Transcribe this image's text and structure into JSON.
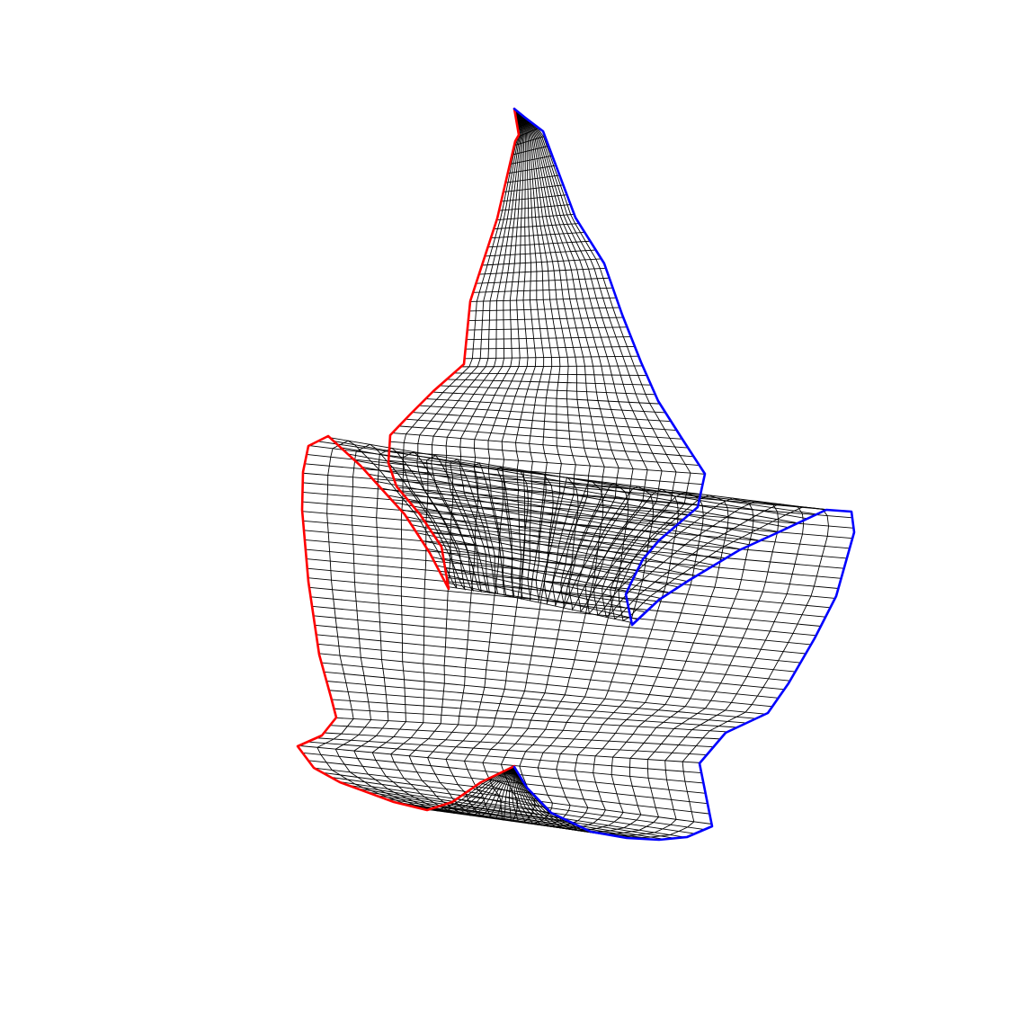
{
  "figure": {
    "description_free": true,
    "left_boundary_color": "#ff0000",
    "right_boundary_color": "#0000ff",
    "mesh_color": "#000000",
    "background_color": "#ffffff",
    "grid_lines_along": 42,
    "grid_lines_across": 22
  }
}
